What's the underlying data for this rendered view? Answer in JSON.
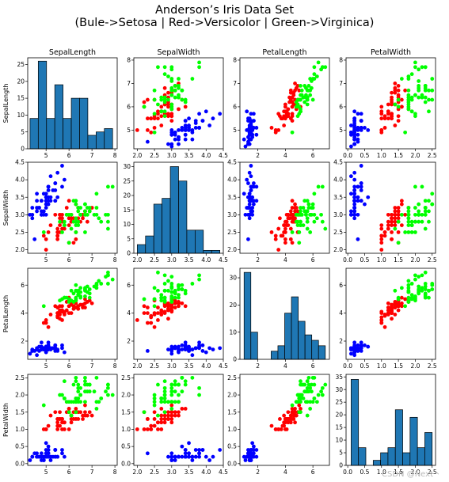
{
  "title_line1": "Anderson’s Iris Data Set",
  "title_line2": "(Bule->Setosa | Red->Versicolor | Green->Virginica)",
  "watermark": "CSDN @Next丶",
  "colors": {
    "setosa": "#0000ff",
    "versicolor": "#ff0000",
    "virginica": "#00ff00",
    "bar": "#1f77b4",
    "edge": "#000000"
  },
  "chart_data": {
    "type": "scatter_matrix",
    "features": [
      "SepalLength",
      "SepalWidth",
      "PetalLength",
      "PetalWidth"
    ],
    "axis_ticks": [
      {
        "range": [
          4.2,
          8.1
        ],
        "ticks": [
          5,
          6,
          7,
          8
        ]
      },
      {
        "range": [
          1.9,
          4.5
        ],
        "ticks": [
          2.0,
          2.5,
          3.0,
          3.5,
          4.0,
          4.5
        ]
      },
      {
        "range": [
          0.7,
          7.2
        ],
        "ticks": [
          2,
          4,
          6
        ]
      },
      {
        "range": [
          -0.05,
          2.6
        ],
        "ticks": [
          0.0,
          0.5,
          1.0,
          1.5,
          2.0,
          2.5
        ]
      }
    ],
    "tick_labels": [
      [
        "5",
        "6",
        "7",
        "8"
      ],
      [
        "2.0",
        "2.5",
        "3.0",
        "3.5",
        "4.0",
        "4.5"
      ],
      [
        "2",
        "4",
        "6"
      ],
      [
        "0.0",
        "0.5",
        "1.0",
        "1.5",
        "2.0",
        "2.5"
      ]
    ],
    "histograms": [
      {
        "edges_range": [
          4.3,
          7.9
        ],
        "counts": [
          9,
          26,
          9,
          19,
          9,
          15,
          15,
          4,
          5,
          6
        ],
        "yticks": [
          0,
          5,
          10,
          15,
          20,
          25
        ],
        "ymax": 27
      },
      {
        "edges_range": [
          2.0,
          4.4
        ],
        "counts": [
          3,
          6,
          17,
          19,
          30,
          25,
          8,
          8,
          1,
          1
        ],
        "yticks": [
          0,
          5,
          10,
          15,
          20,
          25,
          30
        ],
        "ymax": 31.5
      },
      {
        "edges_range": [
          1.0,
          6.9
        ],
        "counts": [
          32,
          10,
          0,
          0,
          3,
          5,
          17,
          23,
          14,
          9,
          7,
          5
        ],
        "yticks": [
          0,
          10,
          20,
          30
        ],
        "ymax": 33.5
      },
      {
        "edges_range": [
          0.1,
          2.5
        ],
        "counts": [
          34,
          7,
          0,
          2,
          5,
          7,
          22,
          5,
          19,
          7,
          13
        ],
        "yticks": [
          0,
          5,
          10,
          15,
          20,
          25,
          30,
          35
        ],
        "ymax": 36
      }
    ],
    "species": [
      {
        "name": "setosa",
        "sepal_length": [
          5.1,
          4.9,
          4.7,
          4.6,
          5.0,
          5.4,
          4.6,
          5.0,
          4.4,
          4.9,
          5.4,
          4.8,
          4.8,
          4.3,
          5.8,
          5.7,
          5.4,
          5.1,
          5.7,
          5.1,
          5.4,
          5.1,
          4.6,
          5.1,
          4.8,
          5.0,
          5.0,
          5.2,
          5.2,
          4.7,
          4.8,
          5.4,
          5.2,
          5.5,
          4.9,
          5.0,
          5.5,
          4.9,
          4.4,
          5.1,
          5.0,
          4.5,
          4.4,
          5.0,
          5.1,
          4.8,
          5.1,
          4.6,
          5.3,
          5.0
        ],
        "sepal_width": [
          3.5,
          3.0,
          3.2,
          3.1,
          3.6,
          3.9,
          3.4,
          3.4,
          2.9,
          3.1,
          3.7,
          3.4,
          3.0,
          3.0,
          4.0,
          4.4,
          3.9,
          3.5,
          3.8,
          3.8,
          3.4,
          3.7,
          3.6,
          3.3,
          3.4,
          3.0,
          3.4,
          3.5,
          3.4,
          3.2,
          3.1,
          3.4,
          4.1,
          4.2,
          3.1,
          3.2,
          3.5,
          3.6,
          3.0,
          3.4,
          3.5,
          2.3,
          3.2,
          3.5,
          3.8,
          3.0,
          3.8,
          3.2,
          3.7,
          3.3
        ],
        "petal_length": [
          1.4,
          1.4,
          1.3,
          1.5,
          1.4,
          1.7,
          1.4,
          1.5,
          1.4,
          1.5,
          1.5,
          1.6,
          1.4,
          1.1,
          1.2,
          1.5,
          1.3,
          1.4,
          1.7,
          1.5,
          1.7,
          1.5,
          1.0,
          1.7,
          1.9,
          1.6,
          1.6,
          1.5,
          1.4,
          1.6,
          1.6,
          1.5,
          1.5,
          1.4,
          1.5,
          1.2,
          1.3,
          1.4,
          1.3,
          1.5,
          1.3,
          1.3,
          1.3,
          1.6,
          1.9,
          1.4,
          1.6,
          1.4,
          1.5,
          1.4
        ],
        "petal_width": [
          0.2,
          0.2,
          0.2,
          0.2,
          0.2,
          0.4,
          0.3,
          0.2,
          0.2,
          0.1,
          0.2,
          0.2,
          0.1,
          0.1,
          0.2,
          0.4,
          0.4,
          0.3,
          0.3,
          0.3,
          0.2,
          0.4,
          0.2,
          0.5,
          0.2,
          0.2,
          0.4,
          0.2,
          0.2,
          0.2,
          0.2,
          0.4,
          0.1,
          0.2,
          0.2,
          0.2,
          0.2,
          0.1,
          0.2,
          0.2,
          0.3,
          0.3,
          0.2,
          0.6,
          0.4,
          0.3,
          0.2,
          0.2,
          0.2,
          0.2
        ]
      },
      {
        "name": "versicolor",
        "sepal_length": [
          7.0,
          6.4,
          6.9,
          5.5,
          6.5,
          5.7,
          6.3,
          4.9,
          6.6,
          5.2,
          5.0,
          5.9,
          6.0,
          6.1,
          5.6,
          6.7,
          5.6,
          5.8,
          6.2,
          5.6,
          5.9,
          6.1,
          6.3,
          6.1,
          6.4,
          6.6,
          6.8,
          6.7,
          6.0,
          5.7,
          5.5,
          5.5,
          5.8,
          6.0,
          5.4,
          6.0,
          6.7,
          6.3,
          5.6,
          5.5,
          5.5,
          6.1,
          5.8,
          5.0,
          5.6,
          5.7,
          5.7,
          6.2,
          5.1,
          5.7
        ],
        "sepal_width": [
          3.2,
          3.2,
          3.1,
          2.3,
          2.8,
          2.8,
          3.3,
          2.4,
          2.9,
          2.7,
          2.0,
          3.0,
          2.2,
          2.9,
          2.9,
          3.1,
          3.0,
          2.7,
          2.2,
          2.5,
          3.2,
          2.8,
          2.5,
          2.8,
          2.9,
          3.0,
          2.8,
          3.0,
          2.9,
          2.6,
          2.4,
          2.4,
          2.7,
          2.7,
          3.0,
          3.4,
          3.1,
          2.3,
          3.0,
          2.5,
          2.6,
          3.0,
          2.6,
          2.3,
          2.7,
          3.0,
          2.9,
          2.9,
          2.5,
          2.8
        ],
        "petal_length": [
          4.7,
          4.5,
          4.9,
          4.0,
          4.6,
          4.5,
          4.7,
          3.3,
          4.6,
          3.9,
          3.5,
          4.2,
          4.0,
          4.7,
          3.6,
          4.4,
          4.5,
          4.1,
          4.5,
          3.9,
          4.8,
          4.0,
          4.9,
          4.7,
          4.3,
          4.4,
          4.8,
          5.0,
          4.5,
          3.5,
          3.8,
          3.7,
          3.9,
          5.1,
          4.5,
          4.5,
          4.7,
          4.4,
          4.1,
          4.0,
          4.4,
          4.6,
          4.0,
          3.3,
          4.2,
          4.2,
          4.2,
          4.3,
          3.0,
          4.1
        ],
        "petal_width": [
          1.4,
          1.5,
          1.5,
          1.3,
          1.5,
          1.3,
          1.6,
          1.0,
          1.3,
          1.4,
          1.0,
          1.5,
          1.0,
          1.4,
          1.3,
          1.4,
          1.5,
          1.0,
          1.5,
          1.1,
          1.8,
          1.3,
          1.5,
          1.2,
          1.3,
          1.4,
          1.4,
          1.7,
          1.5,
          1.0,
          1.1,
          1.0,
          1.2,
          1.6,
          1.5,
          1.6,
          1.5,
          1.3,
          1.3,
          1.3,
          1.2,
          1.4,
          1.2,
          1.0,
          1.3,
          1.2,
          1.3,
          1.3,
          1.1,
          1.3
        ]
      },
      {
        "name": "virginica",
        "sepal_length": [
          6.3,
          5.8,
          7.1,
          6.3,
          6.5,
          7.6,
          4.9,
          7.3,
          6.7,
          7.2,
          6.5,
          6.4,
          6.8,
          5.7,
          5.8,
          6.4,
          6.5,
          7.7,
          7.7,
          6.0,
          6.9,
          5.6,
          7.7,
          6.3,
          6.7,
          7.2,
          6.2,
          6.1,
          6.4,
          7.2,
          7.4,
          7.9,
          6.4,
          6.3,
          6.1,
          7.7,
          6.3,
          6.4,
          6.0,
          6.9,
          6.7,
          6.9,
          5.8,
          6.8,
          6.7,
          6.7,
          6.3,
          6.5,
          6.2,
          5.9
        ],
        "sepal_width": [
          3.3,
          2.7,
          3.0,
          2.9,
          3.0,
          3.0,
          2.5,
          2.9,
          2.5,
          3.6,
          3.2,
          2.7,
          3.0,
          2.5,
          2.8,
          3.2,
          3.0,
          3.8,
          2.6,
          2.2,
          3.2,
          2.8,
          2.8,
          2.7,
          3.3,
          3.2,
          2.8,
          3.0,
          2.8,
          3.0,
          2.8,
          3.8,
          2.8,
          2.8,
          2.6,
          3.0,
          3.4,
          3.1,
          3.0,
          3.1,
          3.1,
          3.1,
          2.7,
          3.2,
          3.3,
          3.0,
          2.5,
          3.0,
          3.4,
          3.0
        ],
        "petal_length": [
          6.0,
          5.1,
          5.9,
          5.6,
          5.8,
          6.6,
          4.5,
          6.3,
          5.8,
          6.1,
          5.1,
          5.3,
          5.5,
          5.0,
          5.1,
          5.3,
          5.5,
          6.7,
          6.9,
          5.0,
          5.7,
          4.9,
          6.7,
          4.9,
          5.7,
          6.0,
          4.8,
          4.9,
          5.6,
          5.8,
          6.1,
          6.4,
          5.6,
          5.1,
          5.6,
          6.1,
          5.6,
          5.5,
          4.8,
          5.4,
          5.6,
          5.1,
          5.1,
          5.9,
          5.7,
          5.2,
          5.0,
          5.2,
          5.4,
          5.1
        ],
        "petal_width": [
          2.5,
          1.9,
          2.1,
          1.8,
          2.2,
          2.1,
          1.7,
          1.8,
          1.8,
          2.5,
          2.0,
          1.9,
          2.1,
          2.0,
          2.4,
          2.3,
          1.8,
          2.2,
          2.3,
          1.5,
          2.3,
          2.0,
          2.0,
          1.8,
          2.1,
          1.8,
          1.8,
          1.8,
          2.1,
          1.6,
          1.9,
          2.0,
          2.2,
          1.5,
          1.4,
          2.3,
          2.4,
          1.8,
          1.8,
          2.1,
          2.4,
          2.3,
          1.9,
          2.3,
          2.5,
          2.3,
          1.9,
          2.0,
          2.3,
          1.8
        ]
      }
    ]
  }
}
